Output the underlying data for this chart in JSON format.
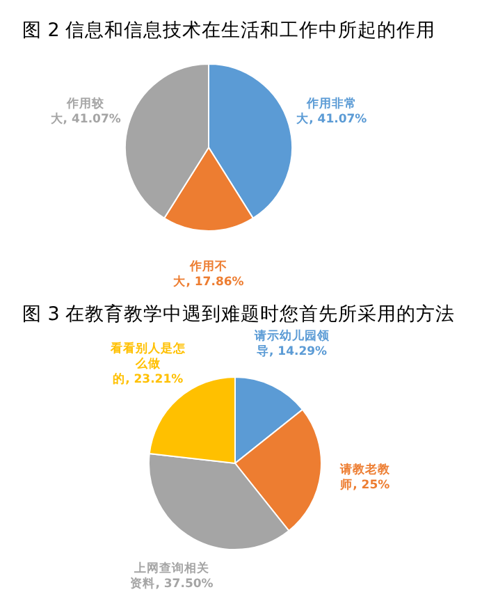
{
  "chart_data": [
    {
      "type": "pie",
      "title": "图 2  信息和信息技术在生活和工作中所起的作用",
      "categories": [
        "作用非常大",
        "作用不大",
        "作用较大"
      ],
      "values": [
        41.07,
        17.86,
        41.07
      ],
      "value_labels": [
        "41.07%",
        "17.86%",
        "41.07%"
      ],
      "colors": [
        "#5b9bd5",
        "#ed7d31",
        "#a5a5a5"
      ]
    },
    {
      "type": "pie",
      "title": "图 3  在教育教学中遇到难题时您首先所采用的方法",
      "categories": [
        "请示幼儿园领导",
        "请教老教师",
        "上网查询相关资料",
        "看看别人是怎么做的"
      ],
      "values": [
        14.29,
        25,
        37.5,
        23.21
      ],
      "value_labels": [
        "14.29%",
        "25%",
        "37.50%",
        "23.21%"
      ],
      "colors": [
        "#5b9bd5",
        "#ed7d31",
        "#a5a5a5",
        "#ffc000"
      ]
    }
  ]
}
